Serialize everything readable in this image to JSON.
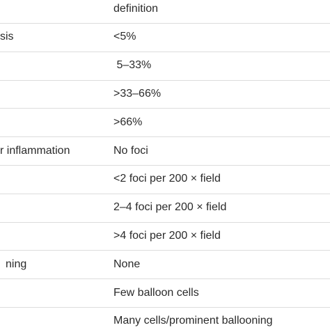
{
  "table": {
    "header": "definition",
    "rows": [
      {
        "feature": "sis",
        "definition": "<5%"
      },
      {
        "definition": " 5–33%"
      },
      {
        "definition": ">33–66%"
      },
      {
        "definition": ">66%"
      },
      {
        "feature": "r inflammation",
        "definition": "No foci"
      },
      {
        "definition": "<2 foci per 200 × field"
      },
      {
        "definition": "2–4 foci per 200 × field"
      },
      {
        "definition": ">4 foci per 200 × field"
      },
      {
        "feature": "ning",
        "definition": "None"
      },
      {
        "definition": "Few balloon cells"
      },
      {
        "definition": "Many cells/prominent ballooning"
      }
    ]
  }
}
